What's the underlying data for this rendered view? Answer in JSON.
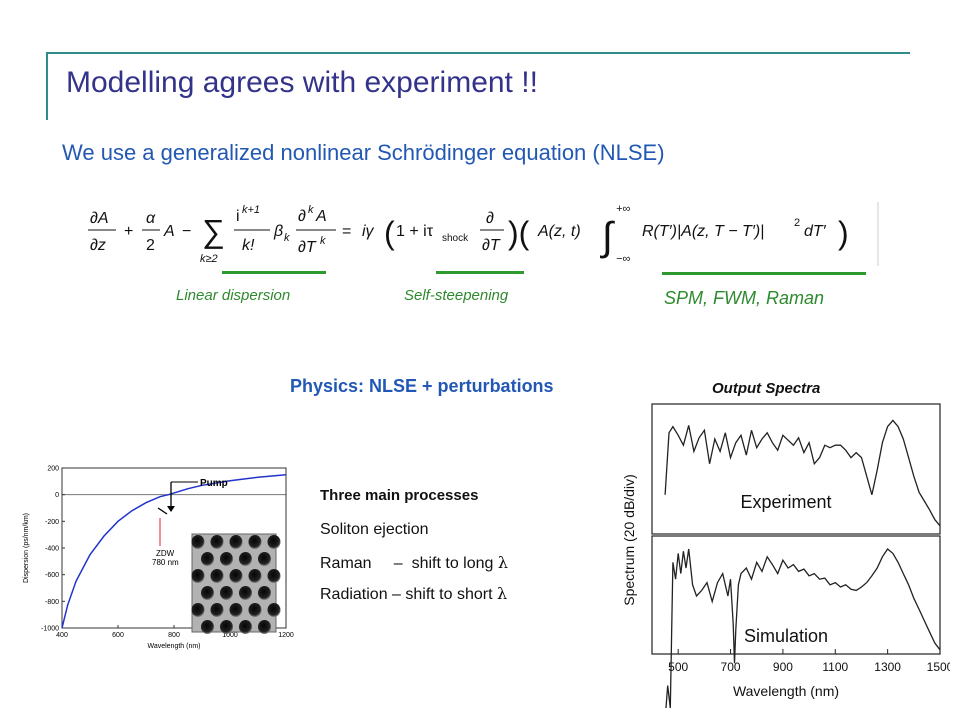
{
  "slide": {
    "title": "Modelling agrees with experiment !!",
    "subtitle": "We use a generalized nonlinear Schrödinger equation (NLSE)",
    "equation_terms": {
      "linear_dispersion": "Linear dispersion",
      "self_steepening": "Self-steepening",
      "nonlinear": "SPM, FWM, Raman"
    },
    "physics_heading": "Physics: NLSE + perturbations",
    "processes": {
      "heading": "Three main processes",
      "items": [
        "Soliton ejection",
        "Raman     –  shift to long",
        "Radiation – shift to short"
      ],
      "lambda_symbol": "λ"
    },
    "colors": {
      "title": "#33338a",
      "accent_blue": "#2258b4",
      "green": "#2e8a2e",
      "rule_teal": "#2e8c8c"
    }
  },
  "chart_data": [
    {
      "type": "line",
      "xlabel": "Wavelength (nm)",
      "ylabel": "Dispersion (ps/nm/km)",
      "xlim": [
        400,
        1200
      ],
      "ylim": [
        -1000,
        200
      ],
      "xticks": [
        "400",
        "600",
        "800",
        "1000",
        "1200"
      ],
      "yticks": [
        "200",
        "0",
        "-200",
        "-400",
        "-600",
        "-800",
        "-1000"
      ],
      "annotations": {
        "pump": "Pump",
        "zdw_line1": "ZDW",
        "zdw_line2": "780 nm"
      },
      "series": [
        {
          "x": [
            400,
            420,
            450,
            500,
            550,
            600,
            650,
            700,
            750,
            780,
            850,
            900,
            1000,
            1100,
            1200
          ],
          "y": [
            -1000,
            -830,
            -650,
            -450,
            -310,
            -200,
            -120,
            -60,
            -15,
            0,
            45,
            70,
            105,
            130,
            150
          ]
        }
      ]
    },
    {
      "type": "line",
      "title": "Output Spectra",
      "xlabel": "Wavelength (nm)",
      "ylabel": "Spectrum (20 dB/div)",
      "xlim": [
        400,
        1500
      ],
      "xticks": [
        "500",
        "700",
        "900",
        "1100",
        "1300",
        "1500"
      ],
      "series": [
        {
          "name": "Experiment",
          "x": [
            450,
            465,
            480,
            500,
            520,
            540,
            560,
            580,
            600,
            620,
            640,
            660,
            680,
            700,
            720,
            740,
            760,
            780,
            800,
            820,
            840,
            860,
            880,
            900,
            920,
            940,
            960,
            980,
            1000,
            1020,
            1040,
            1060,
            1080,
            1100,
            1120,
            1140,
            1160,
            1180,
            1200,
            1220,
            1240,
            1260,
            1280,
            1300,
            1320,
            1340,
            1360,
            1380,
            1400,
            1420,
            1440,
            1460,
            1480,
            1500
          ],
          "y": [
            -70,
            -20,
            -15,
            -22,
            -30,
            -14,
            -35,
            -24,
            -18,
            -45,
            -25,
            -35,
            -20,
            -40,
            -28,
            -22,
            -38,
            -18,
            -32,
            -25,
            -20,
            -28,
            -34,
            -22,
            -26,
            -30,
            -24,
            -36,
            -28,
            -45,
            -40,
            -30,
            -32,
            -30,
            -30,
            -34,
            -40,
            -36,
            -40,
            -55,
            -70,
            -50,
            -28,
            -15,
            -10,
            -15,
            -25,
            -40,
            -55,
            -68,
            -75,
            -82,
            -90,
            -95
          ]
        },
        {
          "name": "Simulation",
          "x": [
            450,
            460,
            470,
            480,
            490,
            500,
            510,
            520,
            530,
            540,
            555,
            570,
            590,
            610,
            630,
            650,
            670,
            690,
            700,
            710,
            715,
            720,
            730,
            740,
            760,
            780,
            800,
            820,
            840,
            860,
            880,
            900,
            920,
            940,
            960,
            980,
            1000,
            1020,
            1040,
            1060,
            1080,
            1100,
            1120,
            1140,
            1160,
            1180,
            1200,
            1220,
            1240,
            1260,
            1280,
            1300,
            1320,
            1340,
            1360,
            1380,
            1400,
            1420,
            1440,
            1460,
            1480,
            1500
          ],
          "y": [
            -160,
            -130,
            -150,
            -20,
            -35,
            -12,
            -30,
            -10,
            -25,
            -8,
            -40,
            -50,
            -45,
            -38,
            -55,
            -38,
            -30,
            -50,
            -35,
            -75,
            -110,
            -80,
            -40,
            -30,
            -25,
            -35,
            -20,
            -28,
            -15,
            -22,
            -30,
            -18,
            -25,
            -22,
            -28,
            -26,
            -32,
            -30,
            -35,
            -34,
            -40,
            -38,
            -42,
            -40,
            -44,
            -45,
            -42,
            -38,
            -32,
            -25,
            -15,
            -8,
            -12,
            -20,
            -30,
            -40,
            -52,
            -62,
            -72,
            -82,
            -92,
            -98
          ]
        }
      ]
    }
  ]
}
